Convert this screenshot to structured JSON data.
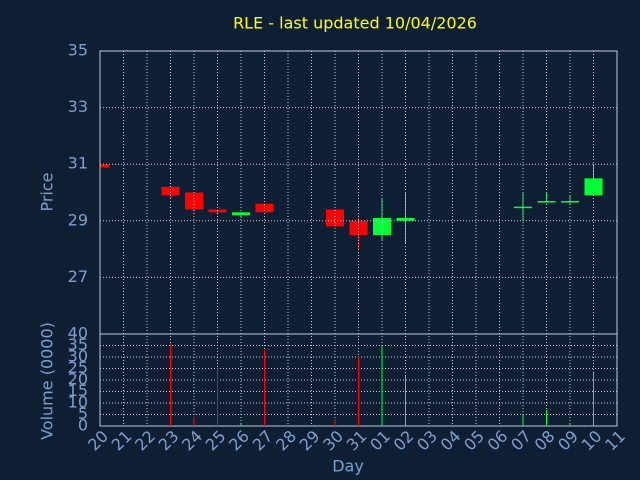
{
  "chart_data": {
    "type": "candlestick",
    "title": "RLE - last updated 10/04/2026",
    "xlabel": "Day",
    "ylabel": "Price",
    "categories": [
      "20",
      "21",
      "22",
      "23",
      "24",
      "25",
      "26",
      "27",
      "28",
      "29",
      "30",
      "31",
      "01",
      "02",
      "03",
      "04",
      "05",
      "06",
      "07",
      "08",
      "09",
      "10",
      "11"
    ],
    "open": [
      31.0,
      null,
      null,
      30.2,
      30.0,
      29.4,
      29.2,
      29.6,
      null,
      null,
      29.4,
      29.0,
      28.5,
      29.0,
      null,
      null,
      null,
      null,
      29.5,
      29.7,
      29.7,
      29.9,
      null
    ],
    "high": [
      31.0,
      null,
      null,
      30.2,
      30.0,
      29.4,
      29.3,
      29.6,
      null,
      null,
      29.4,
      29.2,
      29.8,
      30.0,
      null,
      null,
      null,
      null,
      30.0,
      30.0,
      29.9,
      31.0,
      null
    ],
    "low": [
      30.9,
      null,
      null,
      29.8,
      29.2,
      29.2,
      29.1,
      29.3,
      null,
      null,
      28.8,
      28.0,
      28.3,
      28.2,
      null,
      null,
      null,
      null,
      29.0,
      29.7,
      29.6,
      29.9,
      null
    ],
    "close": [
      30.9,
      null,
      null,
      29.9,
      29.4,
      29.3,
      29.3,
      29.3,
      null,
      null,
      28.8,
      28.5,
      29.1,
      29.1,
      null,
      null,
      null,
      null,
      29.5,
      29.7,
      29.7,
      30.5,
      null
    ],
    "up_color": "#00ff33",
    "down_color": "#ff0000",
    "ylim": [
      25,
      35
    ],
    "yticks": [
      27,
      29,
      31,
      33,
      35
    ],
    "grid": true,
    "volume": {
      "ylabel": "Volume (0000)",
      "values": [
        0,
        null,
        null,
        36,
        4,
        25,
        1,
        33,
        null,
        null,
        3,
        30,
        35,
        22,
        null,
        null,
        null,
        null,
        5,
        7,
        1,
        23,
        null
      ],
      "ylim": [
        0,
        40
      ],
      "yticks": [
        0,
        5,
        10,
        15,
        20,
        25,
        30,
        35,
        40
      ]
    }
  }
}
